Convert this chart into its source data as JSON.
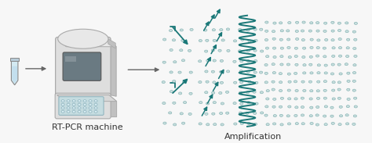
{
  "background_color": "#f7f7f7",
  "label_rtpcr": "RT-PCR machine",
  "label_amplification": "Amplification",
  "label_fontsize": 8,
  "arrow_color": "#666666",
  "teal_color": "#1a7878",
  "gray_light": "#dedede",
  "gray_mid": "#c0c0c0",
  "gray_dark": "#aaaaaa",
  "gray_top": "#e8e8e8",
  "screen_color": "#6a7a82",
  "tray_color": "#c5dce0",
  "tray_edge": "#8ab0bb",
  "tube_fill": "#d4eaf2",
  "tube_edge": "#888888",
  "dot_fill": "#c8dede",
  "dot_edge": "#7aacac",
  "figsize": [
    4.74,
    1.83
  ],
  "dpi": 100
}
